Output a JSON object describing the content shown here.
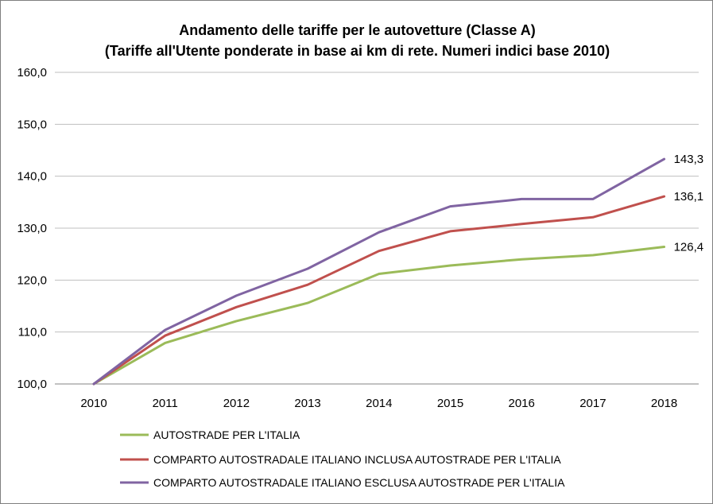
{
  "chart_data": {
    "type": "line",
    "title_line1": "Andamento delle tariffe per le autovetture (Classe A)",
    "title_line2": "(Tariffe all'Utente ponderate in base ai km di rete. Numeri indici base 2010)",
    "xlabel": "",
    "ylabel": "",
    "x": [
      "2010",
      "2011",
      "2012",
      "2013",
      "2014",
      "2015",
      "2016",
      "2017",
      "2018"
    ],
    "ylim": [
      100,
      160
    ],
    "yticks": [
      "100,0",
      "110,0",
      "120,0",
      "130,0",
      "140,0",
      "150,0",
      "160,0"
    ],
    "grid": "horizontal",
    "legend_position": "bottom",
    "series": [
      {
        "name": "AUTOSTRADE PER L'ITALIA",
        "color": "#9bbb59",
        "values": [
          100.0,
          107.9,
          112.1,
          115.6,
          121.2,
          122.8,
          124.0,
          124.8,
          126.4
        ],
        "end_label": "126,4"
      },
      {
        "name": "COMPARTO AUTOSTRADALE ITALIANO INCLUSA AUTOSTRADE PER L'ITALIA",
        "color": "#c0504d",
        "values": [
          100.0,
          109.3,
          114.8,
          119.1,
          125.6,
          129.4,
          130.8,
          132.1,
          136.1
        ],
        "end_label": "136,1"
      },
      {
        "name": "COMPARTO AUTOSTRADALE ITALIANO ESCLUSA AUTOSTRADE PER L'ITALIA",
        "color": "#8064a2",
        "values": [
          100.0,
          110.4,
          117.0,
          122.2,
          129.2,
          134.2,
          135.6,
          135.6,
          143.3
        ],
        "end_label": "143,3"
      }
    ]
  }
}
